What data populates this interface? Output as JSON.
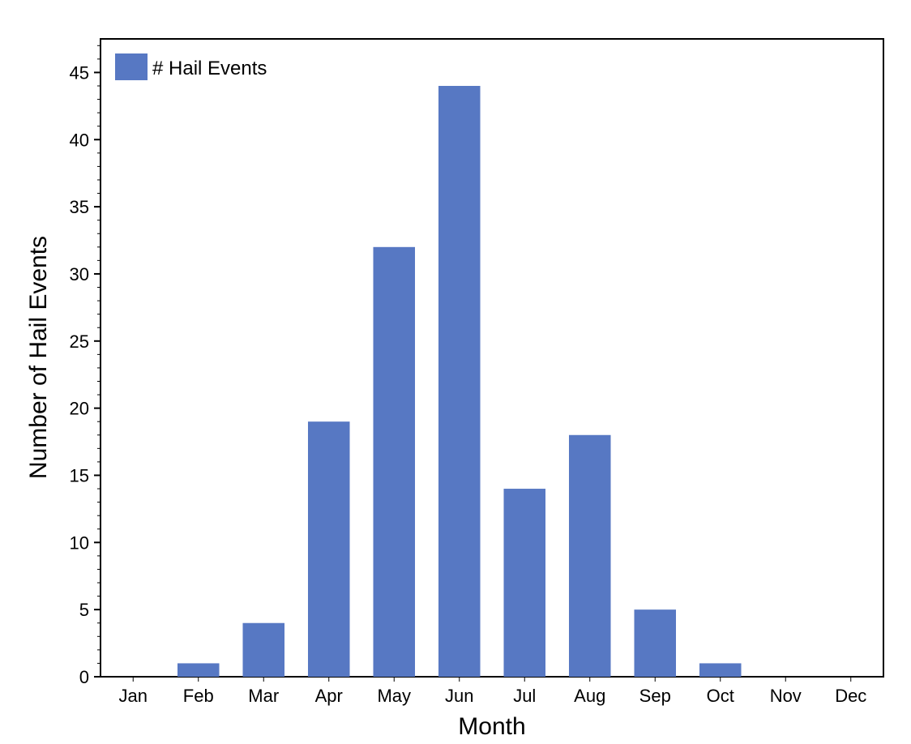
{
  "chart_data": {
    "type": "bar",
    "categories": [
      "Jan",
      "Feb",
      "Mar",
      "Apr",
      "May",
      "Jun",
      "Jul",
      "Aug",
      "Sep",
      "Oct",
      "Nov",
      "Dec"
    ],
    "series": [
      {
        "name": "# Hail Events",
        "values": [
          0,
          1,
          4,
          19,
          32,
          44,
          14,
          18,
          5,
          1,
          0,
          0
        ]
      }
    ],
    "title": "",
    "xlabel": "Month",
    "ylabel": "Number of Hail Events",
    "ylim": [
      0,
      47.5
    ],
    "yticks": [
      0,
      5,
      10,
      15,
      20,
      25,
      30,
      35,
      40,
      45
    ],
    "minor_tick_step": 1,
    "grid": false,
    "legend_position": "top-left",
    "colors": {
      "bar": "#5778c3",
      "axis": "#000000"
    }
  }
}
